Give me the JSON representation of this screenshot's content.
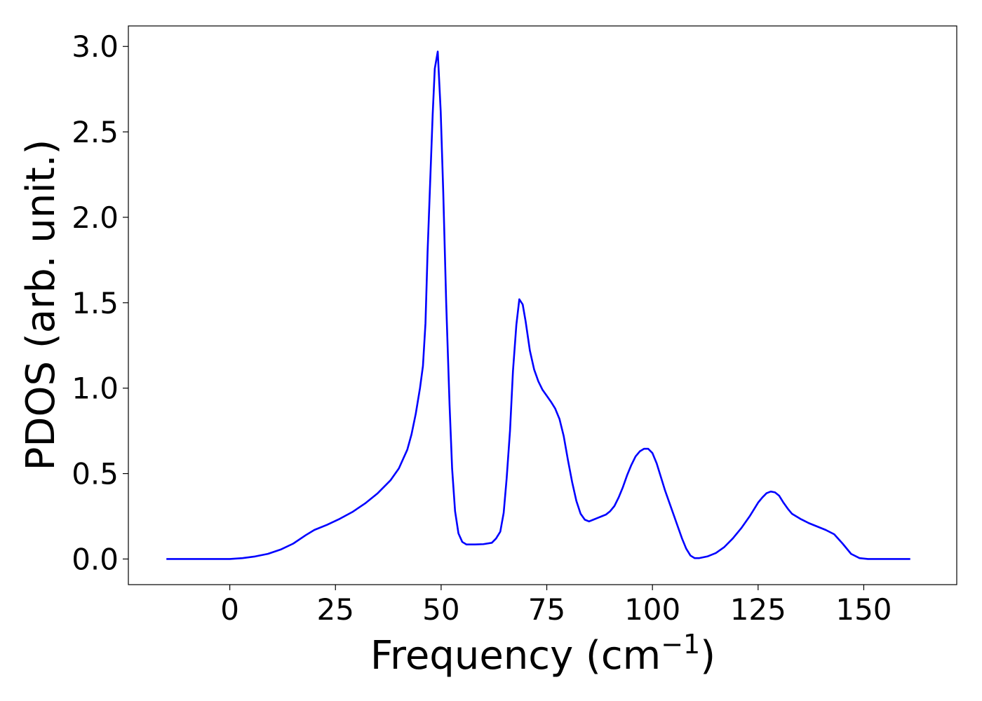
{
  "chart_data": {
    "type": "line",
    "xlabel": "Frequency (cm",
    "xlabel_superscript": "−1",
    "xlabel_close": ")",
    "ylabel": "PDOS (arb. unit.)",
    "xlim": [
      -24,
      172
    ],
    "ylim": [
      -0.15,
      3.12
    ],
    "x_ticks": [
      0,
      25,
      50,
      75,
      100,
      125,
      150
    ],
    "x_tick_labels": [
      "0",
      "25",
      "50",
      "75",
      "100",
      "125",
      "150"
    ],
    "y_ticks": [
      0.0,
      0.5,
      1.0,
      1.5,
      2.0,
      2.5,
      3.0
    ],
    "y_tick_labels": [
      "0.0",
      "0.5",
      "1.0",
      "1.5",
      "2.0",
      "2.5",
      "3.0"
    ],
    "grid": false,
    "legend": "none",
    "series": [
      {
        "color": "#0000ff",
        "points": [
          [
            -15,
            0.0
          ],
          [
            -5,
            0.0
          ],
          [
            0,
            0.0
          ],
          [
            3,
            0.005
          ],
          [
            6,
            0.015
          ],
          [
            9,
            0.03
          ],
          [
            12,
            0.055
          ],
          [
            15,
            0.09
          ],
          [
            18,
            0.14
          ],
          [
            20,
            0.17
          ],
          [
            23,
            0.2
          ],
          [
            26,
            0.235
          ],
          [
            29,
            0.275
          ],
          [
            32,
            0.325
          ],
          [
            35,
            0.385
          ],
          [
            38,
            0.46
          ],
          [
            40,
            0.53
          ],
          [
            42,
            0.64
          ],
          [
            43,
            0.73
          ],
          [
            44,
            0.85
          ],
          [
            45,
            1.0
          ],
          [
            45.7,
            1.13
          ],
          [
            46.3,
            1.38
          ],
          [
            46.8,
            1.8
          ],
          [
            47.4,
            2.2
          ],
          [
            48,
            2.6
          ],
          [
            48.5,
            2.87
          ],
          [
            49.2,
            2.97
          ],
          [
            49.9,
            2.62
          ],
          [
            50.5,
            2.15
          ],
          [
            51.2,
            1.5
          ],
          [
            52,
            0.9
          ],
          [
            52.6,
            0.53
          ],
          [
            53.3,
            0.28
          ],
          [
            54.1,
            0.15
          ],
          [
            55,
            0.1
          ],
          [
            56,
            0.085
          ],
          [
            58,
            0.085
          ],
          [
            60,
            0.087
          ],
          [
            62,
            0.095
          ],
          [
            63,
            0.12
          ],
          [
            64,
            0.16
          ],
          [
            64.8,
            0.27
          ],
          [
            65.5,
            0.47
          ],
          [
            66.3,
            0.75
          ],
          [
            67,
            1.1
          ],
          [
            67.8,
            1.37
          ],
          [
            68.5,
            1.52
          ],
          [
            69.3,
            1.49
          ],
          [
            70,
            1.39
          ],
          [
            71,
            1.22
          ],
          [
            72,
            1.11
          ],
          [
            73,
            1.04
          ],
          [
            74,
            0.99
          ],
          [
            75,
            0.955
          ],
          [
            76,
            0.92
          ],
          [
            77,
            0.88
          ],
          [
            78,
            0.82
          ],
          [
            79,
            0.72
          ],
          [
            80,
            0.58
          ],
          [
            81,
            0.45
          ],
          [
            82,
            0.34
          ],
          [
            83,
            0.265
          ],
          [
            84,
            0.23
          ],
          [
            85,
            0.22
          ],
          [
            86,
            0.23
          ],
          [
            87,
            0.24
          ],
          [
            88,
            0.25
          ],
          [
            89,
            0.26
          ],
          [
            90,
            0.28
          ],
          [
            91,
            0.31
          ],
          [
            92,
            0.36
          ],
          [
            93,
            0.42
          ],
          [
            94,
            0.49
          ],
          [
            95,
            0.55
          ],
          [
            96,
            0.6
          ],
          [
            97,
            0.63
          ],
          [
            98,
            0.645
          ],
          [
            99,
            0.645
          ],
          [
            100,
            0.62
          ],
          [
            101,
            0.56
          ],
          [
            102,
            0.48
          ],
          [
            103,
            0.4
          ],
          [
            104,
            0.33
          ],
          [
            105,
            0.26
          ],
          [
            106,
            0.19
          ],
          [
            107,
            0.12
          ],
          [
            108,
            0.06
          ],
          [
            109,
            0.02
          ],
          [
            110,
            0.005
          ],
          [
            111,
            0.005
          ],
          [
            113,
            0.015
          ],
          [
            115,
            0.035
          ],
          [
            117,
            0.07
          ],
          [
            119,
            0.12
          ],
          [
            121,
            0.18
          ],
          [
            123,
            0.25
          ],
          [
            124,
            0.29
          ],
          [
            125,
            0.33
          ],
          [
            126,
            0.36
          ],
          [
            127,
            0.385
          ],
          [
            128,
            0.395
          ],
          [
            129,
            0.39
          ],
          [
            130,
            0.37
          ],
          [
            131,
            0.33
          ],
          [
            132,
            0.295
          ],
          [
            133,
            0.265
          ],
          [
            135,
            0.235
          ],
          [
            137,
            0.21
          ],
          [
            139,
            0.19
          ],
          [
            141,
            0.17
          ],
          [
            143,
            0.145
          ],
          [
            145,
            0.09
          ],
          [
            147,
            0.03
          ],
          [
            149,
            0.005
          ],
          [
            151,
            0.0
          ],
          [
            155,
            0.0
          ],
          [
            161,
            0.0
          ]
        ]
      }
    ]
  }
}
